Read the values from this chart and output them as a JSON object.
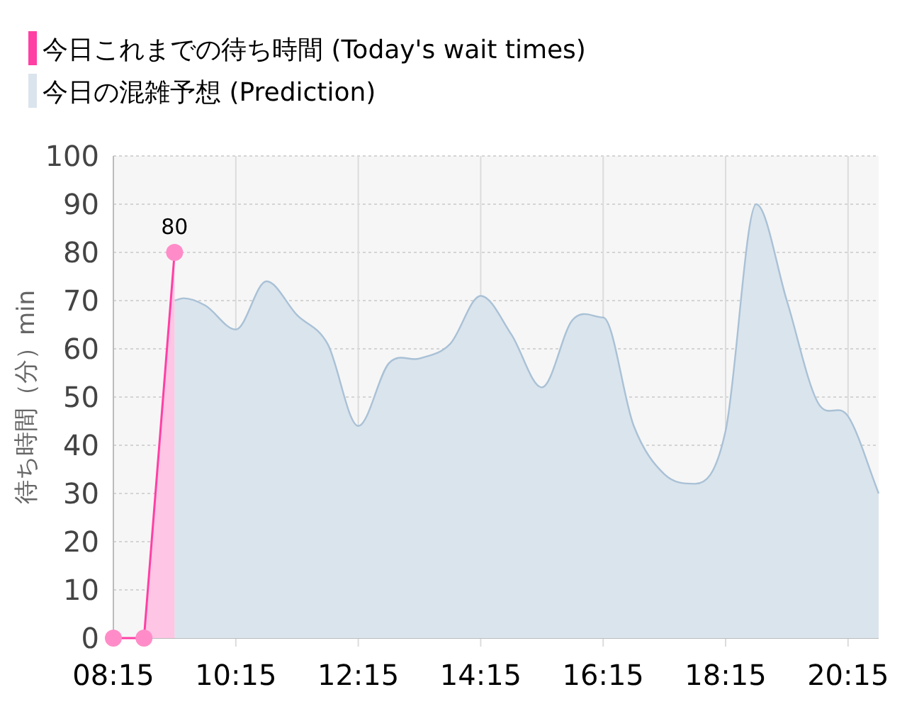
{
  "chart_data": {
    "type": "area",
    "ylabel": "待ち時間（分）min",
    "xlim": [
      8.25,
      20.75
    ],
    "xticks": [
      {
        "value": 8.25,
        "label": "08:15"
      },
      {
        "value": 10.25,
        "label": "10:15"
      },
      {
        "value": 12.25,
        "label": "12:15"
      },
      {
        "value": 14.25,
        "label": "14:15"
      },
      {
        "value": 16.25,
        "label": "16:15"
      },
      {
        "value": 18.25,
        "label": "18:15"
      },
      {
        "value": 20.25,
        "label": "20:15"
      }
    ],
    "ylim": [
      0,
      100
    ],
    "yticks": [
      0,
      10,
      20,
      30,
      40,
      50,
      60,
      70,
      80,
      90,
      100
    ],
    "grid": true,
    "legend": "top left",
    "series": [
      {
        "name": "今日これまでの待ち時間 (Today's wait times)",
        "color": "#ff3fa4",
        "x": [
          8.25,
          8.75,
          9.25
        ],
        "values": [
          0,
          0,
          80
        ],
        "value_labels": [
          null,
          null,
          "80"
        ],
        "marker": "circle"
      },
      {
        "name": "今日の混雑予想 (Prediction)",
        "color": "#dae4ed",
        "x": [
          9.25,
          9.4,
          9.75,
          10.25,
          10.75,
          11.25,
          11.75,
          12.25,
          12.75,
          13.25,
          13.75,
          14.25,
          14.75,
          15.25,
          15.75,
          16.25,
          16.75,
          17.25,
          17.75,
          18.25,
          18.75,
          19.25,
          19.75,
          20.25,
          20.75
        ],
        "values": [
          70,
          70.5,
          69,
          64,
          74,
          67,
          61,
          44,
          57,
          58,
          61,
          71,
          63,
          52,
          66,
          66.5,
          44,
          34,
          32,
          43,
          90,
          70,
          49,
          46,
          30
        ]
      }
    ]
  }
}
